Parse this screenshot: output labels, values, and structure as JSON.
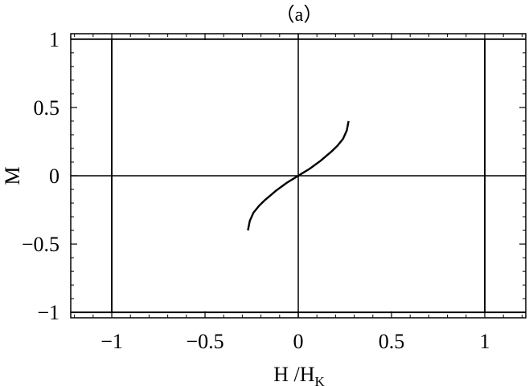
{
  "chart_data": {
    "type": "line",
    "title": "（a）",
    "xlabel": {
      "main": "H /H",
      "subscript": "K"
    },
    "ylabel": "M",
    "xlim": [
      -1.22,
      1.22
    ],
    "ylim": [
      -1.04,
      1.04
    ],
    "xticks": [
      {
        "value": -1,
        "label": "−1"
      },
      {
        "value": -0.5,
        "label": "−0.5"
      },
      {
        "value": 0,
        "label": "0"
      },
      {
        "value": 0.5,
        "label": "0.5"
      },
      {
        "value": 1,
        "label": "1"
      }
    ],
    "yticks": [
      {
        "value": 1,
        "label": "1"
      },
      {
        "value": 0.5,
        "label": "0.5"
      },
      {
        "value": 0,
        "label": "0"
      },
      {
        "value": -0.5,
        "label": "−0.5"
      },
      {
        "value": -1,
        "label": "−1"
      }
    ],
    "minor_tick_step": 0.1,
    "series": [
      {
        "values_x": [
          -1.22,
          -1,
          -1,
          1,
          1,
          1.22
        ],
        "values_y": [
          1,
          1,
          -1,
          -1,
          1,
          1
        ]
      },
      {
        "values_x": [
          -1.22,
          -1,
          -1,
          1,
          1,
          1.22
        ],
        "values_y": [
          -1,
          -1,
          1,
          1,
          -1,
          -1
        ]
      },
      {
        "values_x": [
          -0.27,
          -0.26,
          -0.24,
          -0.21,
          -0.18,
          -0.15,
          -0.12,
          -0.09,
          -0.06,
          -0.03,
          0,
          0.03,
          0.06,
          0.09,
          0.12,
          0.15,
          0.18,
          0.21,
          0.24,
          0.26,
          0.27
        ],
        "values_y": [
          -0.4,
          -0.33,
          -0.27,
          -0.22,
          -0.18,
          -0.145,
          -0.11,
          -0.08,
          -0.05,
          -0.025,
          0,
          0.025,
          0.05,
          0.08,
          0.11,
          0.145,
          0.18,
          0.22,
          0.27,
          0.33,
          0.4
        ]
      }
    ],
    "grid": false,
    "zero_lines": true
  }
}
